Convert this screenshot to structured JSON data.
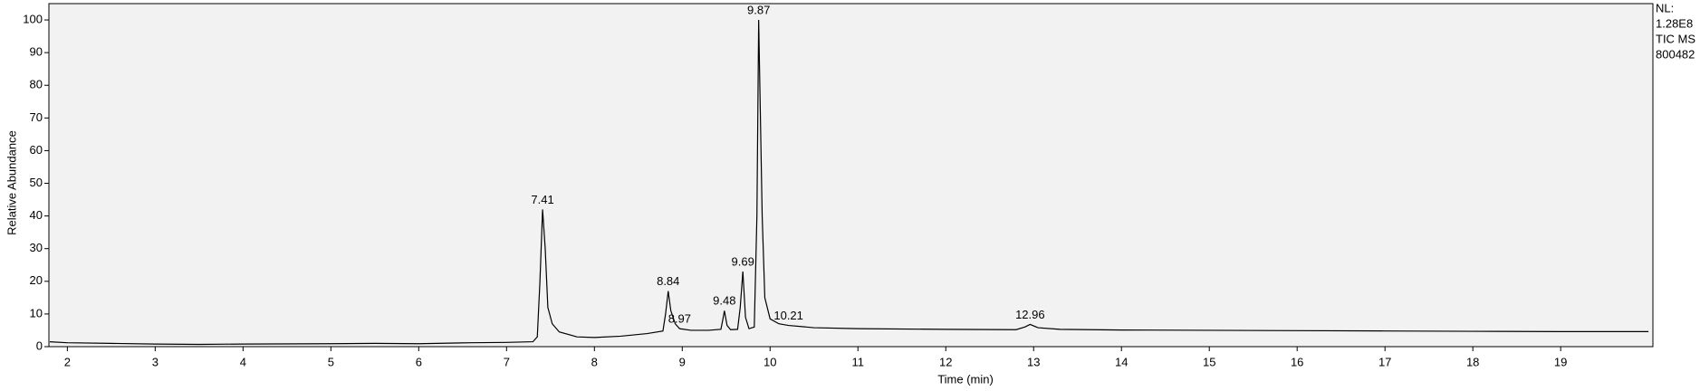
{
  "chart_data": {
    "type": "line",
    "xlabel": "Time (min)",
    "ylabel": "Relative Abundance",
    "side_text": [
      "NL:",
      "1.28E8",
      "TIC  MS",
      "800482"
    ],
    "x": [
      1.8,
      2.0,
      2.5,
      3.0,
      3.5,
      4.0,
      5.0,
      5.5,
      6.0,
      6.6,
      7.0,
      7.3,
      7.35,
      7.38,
      7.41,
      7.44,
      7.47,
      7.52,
      7.6,
      7.8,
      8.0,
      8.3,
      8.6,
      8.78,
      8.81,
      8.84,
      8.87,
      8.92,
      8.97,
      9.1,
      9.3,
      9.44,
      9.46,
      9.48,
      9.51,
      9.55,
      9.63,
      9.66,
      9.69,
      9.72,
      9.76,
      9.82,
      9.85,
      9.87,
      9.89,
      9.91,
      9.94,
      10.0,
      10.1,
      10.21,
      10.5,
      11.0,
      12.0,
      12.8,
      12.9,
      12.96,
      13.05,
      13.3,
      14.0,
      15.0,
      16.0,
      17.0,
      18.0,
      19.0,
      20.0
    ],
    "values": [
      1.5,
      1.2,
      1.0,
      0.8,
      0.7,
      0.8,
      0.9,
      1.0,
      0.9,
      1.2,
      1.3,
      1.5,
      3,
      20,
      42,
      30,
      12,
      7,
      4.5,
      3,
      2.8,
      3.2,
      4,
      4.8,
      10,
      17,
      11,
      7,
      5.5,
      5,
      5,
      5.3,
      8,
      11,
      6.5,
      5.2,
      5.3,
      12,
      23,
      9,
      5.5,
      6,
      40,
      100,
      70,
      40,
      15,
      8.5,
      7,
      6.5,
      5.8,
      5.5,
      5.3,
      5.2,
      6,
      6.8,
      5.8,
      5.3,
      5.1,
      5.0,
      4.9,
      4.8,
      4.7,
      4.6,
      4.6
    ],
    "color": "#000000",
    "annotations": [
      {
        "x": 7.41,
        "y": 42
      },
      {
        "x": 8.84,
        "y": 17
      },
      {
        "x": 8.97,
        "y": 5.5
      },
      {
        "x": 9.48,
        "y": 11
      },
      {
        "x": 9.69,
        "y": 23
      },
      {
        "x": 9.87,
        "y": 100
      },
      {
        "x": 10.21,
        "y": 6.5
      },
      {
        "x": 12.96,
        "y": 6.8
      }
    ],
    "xlim": [
      1.79,
      20.05
    ],
    "ylim": [
      0,
      105
    ],
    "xticks": [
      2,
      3,
      4,
      5,
      6,
      7,
      8,
      9,
      10,
      11,
      12,
      13,
      14,
      15,
      16,
      17,
      18,
      19
    ],
    "yticks": [
      0,
      10,
      20,
      30,
      40,
      50,
      60,
      70,
      80,
      90,
      100
    ],
    "grid": false
  }
}
